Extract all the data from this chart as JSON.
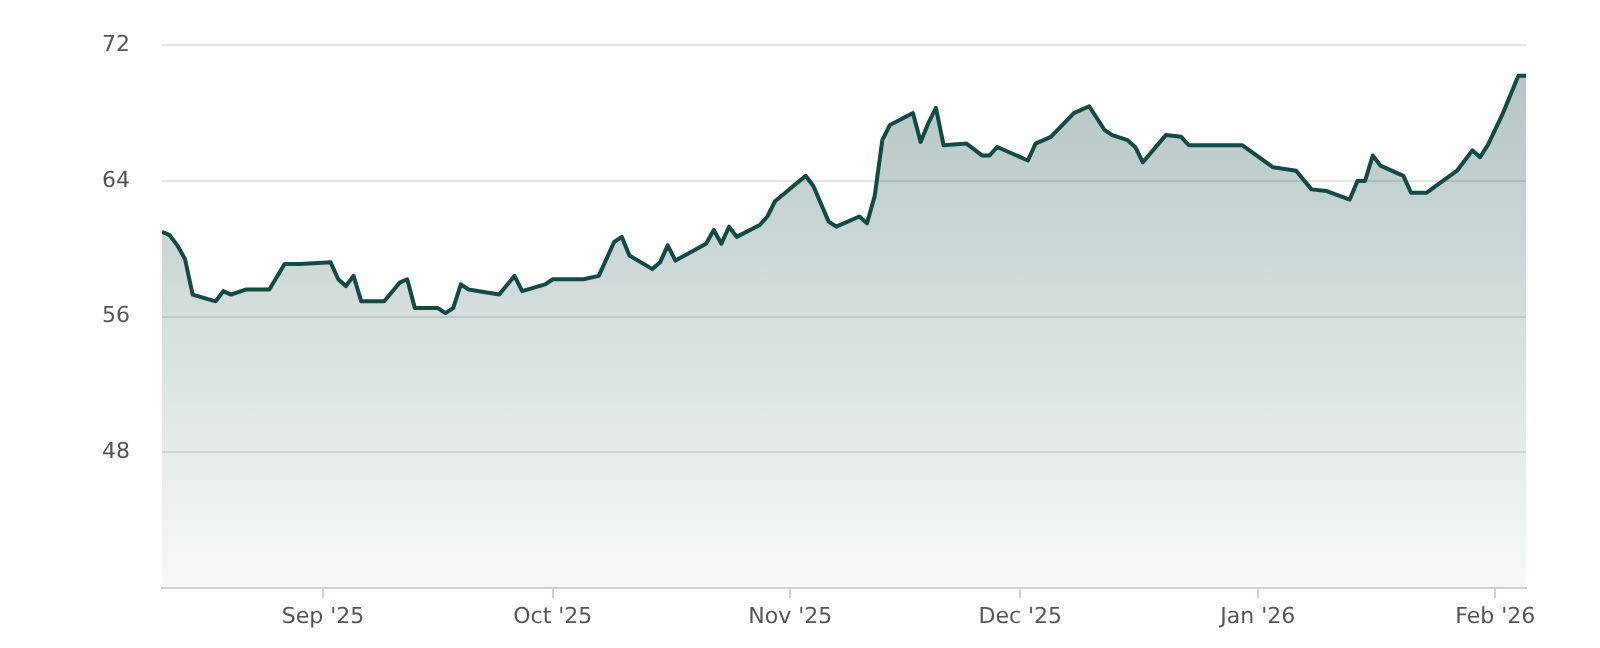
{
  "chart_data": {
    "type": "area",
    "x": [
      "2025-08-11",
      "2025-08-12",
      "2025-08-13",
      "2025-08-14",
      "2025-08-15",
      "2025-08-18",
      "2025-08-19",
      "2025-08-20",
      "2025-08-22",
      "2025-08-25",
      "2025-08-27",
      "2025-08-29",
      "2025-09-02",
      "2025-09-03",
      "2025-09-04",
      "2025-09-05",
      "2025-09-06",
      "2025-09-09",
      "2025-09-11",
      "2025-09-12",
      "2025-09-13",
      "2025-09-16",
      "2025-09-17",
      "2025-09-18",
      "2025-09-19",
      "2025-09-20",
      "2025-09-24",
      "2025-09-26",
      "2025-09-27",
      "2025-09-30",
      "2025-10-01",
      "2025-10-05",
      "2025-10-07",
      "2025-10-09",
      "2025-10-10",
      "2025-10-11",
      "2025-10-14",
      "2025-10-15",
      "2025-10-16",
      "2025-10-17",
      "2025-10-21",
      "2025-10-22",
      "2025-10-23",
      "2025-10-24",
      "2025-10-25",
      "2025-10-28",
      "2025-10-29",
      "2025-10-30",
      "2025-11-03",
      "2025-11-04",
      "2025-11-06",
      "2025-11-07",
      "2025-11-10",
      "2025-11-11",
      "2025-11-12",
      "2025-11-13",
      "2025-11-14",
      "2025-11-17",
      "2025-11-18",
      "2025-11-19",
      "2025-11-20",
      "2025-11-21",
      "2025-11-24",
      "2025-11-26",
      "2025-11-27",
      "2025-11-28",
      "2025-12-02",
      "2025-12-03",
      "2025-12-05",
      "2025-12-08",
      "2025-12-10",
      "2025-12-12",
      "2025-12-13",
      "2025-12-15",
      "2025-12-16",
      "2025-12-17",
      "2025-12-20",
      "2025-12-22",
      "2025-12-23",
      "2025-12-30",
      "2026-01-03",
      "2026-01-06",
      "2026-01-08",
      "2026-01-10",
      "2026-01-13",
      "2026-01-14",
      "2026-01-15",
      "2026-01-16",
      "2026-01-17",
      "2026-01-20",
      "2026-01-21",
      "2026-01-23",
      "2026-01-27",
      "2026-01-29",
      "2026-01-30",
      "2026-01-31",
      "2026-02-02",
      "2026-02-04",
      "2026-02-05"
    ],
    "series": [
      {
        "color": "#124a44",
        "values": [
          61.0,
          60.8,
          60.2,
          59.4,
          57.3,
          56.9,
          57.5,
          57.3,
          57.6,
          57.6,
          59.1,
          59.1,
          59.2,
          58.2,
          57.8,
          58.4,
          56.9,
          56.9,
          58.0,
          58.2,
          56.5,
          56.5,
          56.2,
          56.5,
          57.9,
          57.6,
          57.3,
          58.4,
          57.5,
          57.9,
          58.2,
          58.2,
          58.4,
          60.4,
          60.7,
          59.6,
          58.8,
          59.2,
          60.2,
          59.3,
          60.3,
          61.1,
          60.3,
          61.3,
          60.7,
          61.4,
          61.9,
          62.8,
          64.3,
          63.7,
          61.6,
          61.3,
          61.9,
          61.5,
          63.1,
          66.4,
          67.3,
          68.0,
          66.3,
          67.4,
          68.3,
          66.1,
          66.2,
          65.5,
          65.5,
          66.0,
          65.2,
          66.2,
          66.6,
          68.0,
          68.4,
          67.0,
          66.7,
          66.4,
          66.0,
          65.1,
          66.7,
          66.6,
          66.1,
          66.1,
          64.8,
          64.6,
          63.5,
          63.4,
          62.9,
          64.0,
          64.0,
          65.5,
          64.9,
          64.3,
          63.3,
          63.3,
          64.6,
          65.8,
          65.4,
          66.1,
          68.0,
          70.2,
          70.2
        ]
      }
    ],
    "xlim": [
      "2025-08-11",
      "2026-02-05"
    ],
    "xticks": [
      {
        "value": "2025-09-01",
        "label": "Sep '25"
      },
      {
        "value": "2025-10-01",
        "label": "Oct '25"
      },
      {
        "value": "2025-11-01",
        "label": "Nov '25"
      },
      {
        "value": "2025-12-01",
        "label": "Dec '25"
      },
      {
        "value": "2026-01-01",
        "label": "Jan '26"
      },
      {
        "value": "2026-02-01",
        "label": "Feb '26"
      }
    ],
    "ylim": [
      40,
      72
    ],
    "yticks": [
      48,
      56,
      64,
      72
    ],
    "grid": "y",
    "marker": "none",
    "line_style": "solid"
  }
}
